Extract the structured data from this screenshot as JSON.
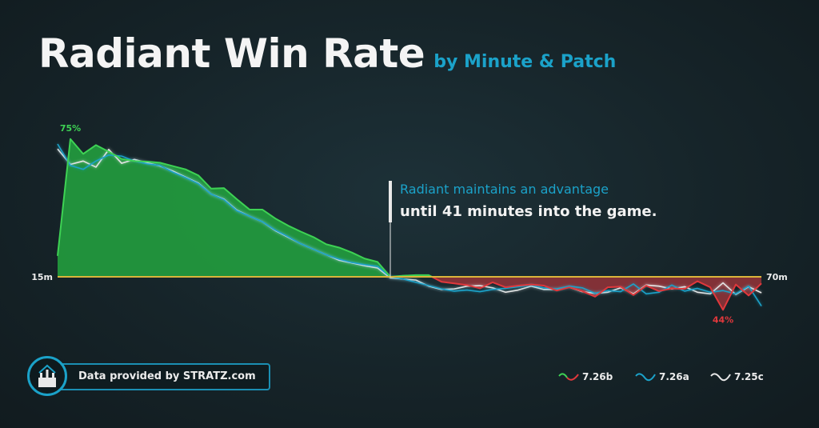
{
  "header": {
    "title": "Radiant Win Rate",
    "subtitle": "by Minute & Patch"
  },
  "annotation": {
    "line1": "Radiant maintains an advantage",
    "line2": "until 41 minutes into the game."
  },
  "credit": {
    "text": "Data provided by STRATZ.com",
    "logo_icon": "stratz-logo-icon"
  },
  "colors": {
    "win_fill": "#23a43f",
    "win_line": "#3ed254",
    "loss_fill": "#8e3338",
    "loss_line": "#e0383c",
    "patch_726a": "#1ba2c9",
    "patch_725c": "#e6e6e6",
    "baseline": "#d9b53a",
    "annotation_marker": "#e9e9e9"
  },
  "chart_data": {
    "type": "line",
    "title": "Radiant Win Rate",
    "subtitle": "by Minute & Patch",
    "xlabel": "",
    "ylabel": "",
    "x_start_label": "15m",
    "x_end_label": "70m",
    "xlim": [
      15,
      70
    ],
    "ylim": [
      41,
      77
    ],
    "baseline": 50,
    "grid": false,
    "legend_position": "bottom-right",
    "x": [
      15,
      16,
      17,
      18,
      19,
      20,
      21,
      22,
      23,
      24,
      25,
      26,
      27,
      28,
      29,
      30,
      31,
      32,
      33,
      34,
      35,
      36,
      37,
      38,
      39,
      40,
      41,
      42,
      43,
      44,
      45,
      46,
      47,
      48,
      49,
      50,
      51,
      52,
      53,
      54,
      55,
      56,
      57,
      58,
      59,
      60,
      61,
      62,
      63,
      64,
      65,
      66,
      67,
      68,
      69,
      70
    ],
    "series": [
      {
        "name": "7.26b",
        "values": [
          53.8,
          75.0,
          72.3,
          73.9,
          72.7,
          71.4,
          71.0,
          70.9,
          70.7,
          70.1,
          69.5,
          68.4,
          66.0,
          66.1,
          64.1,
          62.2,
          62.2,
          60.6,
          59.3,
          58.2,
          57.2,
          55.9,
          55.3,
          54.4,
          53.3,
          52.7,
          50.0,
          50.2,
          50.3,
          50.3,
          49.1,
          48.8,
          48.5,
          47.9,
          49.0,
          48.1,
          48.4,
          48.6,
          48.4,
          47.5,
          48.1,
          47.4,
          46.4,
          48.1,
          48.2,
          46.7,
          48.4,
          47.4,
          47.9,
          47.8,
          49.2,
          48.1,
          44.0,
          48.6,
          46.6,
          48.8
        ],
        "color": "#3ed254"
      },
      {
        "name": "7.26a",
        "values": [
          74.1,
          70.2,
          69.5,
          71.0,
          72.1,
          71.9,
          71.0,
          70.5,
          70.2,
          69.0,
          68.0,
          66.9,
          65.0,
          64.0,
          62.0,
          61.0,
          60.0,
          58.5,
          57.3,
          56.0,
          55.0,
          54.0,
          53.2,
          52.6,
          52.2,
          51.9,
          50.0,
          49.6,
          49.0,
          48.4,
          47.8,
          47.4,
          47.6,
          47.3,
          47.7,
          47.9,
          48.2,
          48.5,
          48.0,
          47.8,
          48.3,
          48.0,
          47.0,
          47.5,
          47.3,
          48.7,
          46.9,
          47.2,
          48.5,
          47.4,
          47.9,
          47.2,
          47.5,
          46.9,
          48.3,
          44.7
        ],
        "color": "#1ba2c9"
      },
      {
        "name": "7.25c",
        "values": [
          73.2,
          70.4,
          71.0,
          69.9,
          73.1,
          70.6,
          71.3,
          70.7,
          70.1,
          69.2,
          68.1,
          67.0,
          65.0,
          64.1,
          62.1,
          61.0,
          60.0,
          58.4,
          57.2,
          56.0,
          55.0,
          54.0,
          53.0,
          52.5,
          52.0,
          51.6,
          49.8,
          49.6,
          49.4,
          48.3,
          47.7,
          47.8,
          48.3,
          48.4,
          48.0,
          47.2,
          47.6,
          48.3,
          47.7,
          47.7,
          48.1,
          47.3,
          47.0,
          47.2,
          48.0,
          46.9,
          48.5,
          48.3,
          47.8,
          48.2,
          47.2,
          46.9,
          48.9,
          46.8,
          48.2,
          47.1
        ],
        "color": "#e6e6e6"
      }
    ],
    "annotations": [
      {
        "label": "75%",
        "x": 16,
        "value": 75
      },
      {
        "label": "44%",
        "x": 67,
        "value": 44
      }
    ],
    "marker_x": 41
  }
}
